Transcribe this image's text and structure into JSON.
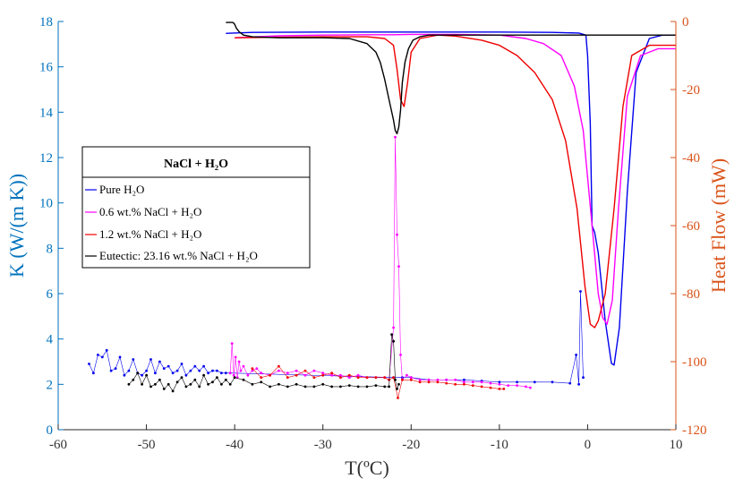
{
  "chart_data": {
    "type": "line",
    "title": "",
    "xlabel": "T(ºC)",
    "ylabel_left": "K (W/(m K))",
    "ylabel_right": "Heat Flow (mW)",
    "xlim": [
      -60,
      10
    ],
    "ylim_left": [
      0,
      18
    ],
    "ylim_right": [
      -120,
      0
    ],
    "x_ticks": [
      "-60",
      "-50",
      "-40",
      "-30",
      "-20",
      "-10",
      "0",
      "10"
    ],
    "y_left_ticks": [
      "0",
      "2",
      "4",
      "6",
      "8",
      "10",
      "12",
      "14",
      "16",
      "18"
    ],
    "y_right_ticks": [
      "-120",
      "-100",
      "-80",
      "-60",
      "-40",
      "-20",
      "0"
    ],
    "grid": false,
    "colors": {
      "left_axis": "#0072bd",
      "right_axis": "#d95319",
      "pure": "#0000ee",
      "nacl06": "#ff00ff",
      "nacl12": "#ee0000",
      "eutectic": "#000000"
    },
    "legend": {
      "title": "NaCl + H₂O",
      "position": "center-left",
      "entries": [
        "Pure H₂O",
        "0.6 wt.% NaCl + H₂O",
        "1.2 wt.% NaCl + H₂O",
        "Eutectic: 23.16 wt.% NaCl + H₂O"
      ]
    },
    "series": [
      {
        "name": "Pure H₂O",
        "axis": "right",
        "key": "pure",
        "x": [
          -41,
          -38,
          -30,
          -20,
          -10,
          -4,
          -1,
          -0.2,
          0,
          0.3,
          0.5,
          0.8,
          1.2,
          2,
          2.7,
          3,
          3.6,
          4.5,
          5.5,
          7,
          8.5,
          10
        ],
        "y": [
          -3.5,
          -3.2,
          -3.1,
          -3.1,
          -3.1,
          -3.2,
          -3.4,
          -4,
          -10,
          -30,
          -60,
          -62,
          -68,
          -88,
          -100.5,
          -101,
          -90,
          -50,
          -15,
          -5,
          -4,
          -4
        ]
      },
      {
        "name": "0.6 wt.% NaCl + H₂O",
        "axis": "right",
        "key": "nacl06",
        "x": [
          -40,
          -35,
          -30,
          -25,
          -22,
          -20,
          -15,
          -10,
          -7,
          -5,
          -3,
          -1.5,
          -0.5,
          0.5,
          1.2,
          1.7,
          2.2,
          2.8,
          3.5,
          4.5,
          6,
          8,
          10
        ],
        "y": [
          -4.8,
          -4.2,
          -4,
          -3.9,
          -3.9,
          -3.8,
          -3.8,
          -4,
          -5,
          -6.5,
          -10,
          -19,
          -32,
          -60,
          -80,
          -87,
          -89,
          -82,
          -55,
          -22,
          -10,
          -8,
          -8
        ]
      },
      {
        "name": "1.2 wt.% NaCl + H₂O",
        "axis": "right",
        "key": "nacl12",
        "x": [
          -40,
          -30,
          -25,
          -23,
          -22,
          -21.6,
          -21.2,
          -20.8,
          -20.4,
          -20,
          -19,
          -17,
          -15,
          -12,
          -10,
          -8,
          -6,
          -4,
          -2.5,
          -1.2,
          -0.3,
          0.3,
          0.8,
          1.2,
          2,
          3,
          4,
          5,
          7,
          10
        ],
        "y": [
          -4.8,
          -4.5,
          -4.5,
          -5,
          -7,
          -14,
          -23,
          -25,
          -18,
          -9,
          -5,
          -4,
          -4.3,
          -5.5,
          -7,
          -10,
          -15,
          -23,
          -35,
          -55,
          -78,
          -89,
          -90,
          -88,
          -80,
          -55,
          -25,
          -10,
          -7,
          -7
        ]
      },
      {
        "name": "Eutectic: 23.16 wt.% NaCl + H₂O",
        "axis": "right",
        "key": "eutectic",
        "x": [
          -41,
          -40.2,
          -40,
          -39.8,
          -39.5,
          -39,
          -38,
          -35,
          -30,
          -27,
          -25,
          -24,
          -23.5,
          -23,
          -22.5,
          -22,
          -21.8,
          -21.6,
          -21.4,
          -21.2,
          -21,
          -20.7,
          -20.3,
          -19.8,
          -19,
          -18,
          -16,
          -14,
          -10,
          0,
          10
        ],
        "y": [
          -0.3,
          -0.3,
          -0.8,
          -2,
          -3,
          -4,
          -4.5,
          -4.8,
          -4.8,
          -5,
          -6.5,
          -9,
          -12,
          -17,
          -23,
          -29,
          -32,
          -33,
          -31,
          -26,
          -18,
          -12,
          -8,
          -5.5,
          -4.5,
          -4,
          -4,
          -4,
          -4,
          -4,
          -4
        ]
      }
    ],
    "scatter_series": [
      {
        "name": "Pure H₂O",
        "axis": "left",
        "key": "pure",
        "x": [
          -56.5,
          -56,
          -55.5,
          -55,
          -54.5,
          -54,
          -53.5,
          -53,
          -52.5,
          -52,
          -51.5,
          -51,
          -50.5,
          -50,
          -49.5,
          -49,
          -48.5,
          -48,
          -47.5,
          -47,
          -46.5,
          -46,
          -45.5,
          -45,
          -44.5,
          -44,
          -43.5,
          -43,
          -42.5,
          -42,
          -41.5,
          -41,
          -40.5,
          -22,
          -21,
          -20,
          -18,
          -16,
          -14,
          -12,
          -10,
          -8,
          -6,
          -4,
          -2,
          -1.3,
          -1,
          -0.8,
          -0.5
        ],
        "y": [
          2.9,
          2.5,
          3.3,
          3.2,
          3.5,
          2.6,
          2.7,
          3.2,
          2.4,
          2.6,
          3.1,
          2.5,
          2.4,
          2.6,
          3.1,
          2.5,
          3,
          2.7,
          2.8,
          2.5,
          2.6,
          2.9,
          2.4,
          2.6,
          2.8,
          2.6,
          2.8,
          2.5,
          2.6,
          2.6,
          2.5,
          2.5,
          2.5,
          2.3,
          2.3,
          2.3,
          2.2,
          2.2,
          2.2,
          2.15,
          2.1,
          2.1,
          2.1,
          2.1,
          2.05,
          3.3,
          2.0,
          6.1,
          2.3
        ]
      },
      {
        "name": "0.6 wt.% NaCl + H₂O",
        "axis": "left",
        "key": "nacl06",
        "x": [
          -40.5,
          -40.3,
          -40.1,
          -39.9,
          -39.7,
          -39.5,
          -39.3,
          -39,
          -38.5,
          -38,
          -37.5,
          -37,
          -36,
          -35,
          -34,
          -33,
          -32,
          -31,
          -30,
          -29,
          -28,
          -27,
          -26,
          -25,
          -24,
          -23,
          -22.5,
          -22,
          -21.8,
          -21.6,
          -21.4,
          -21.2,
          -21,
          -20.5,
          -20,
          -19,
          -18,
          -17,
          -16,
          -15,
          -14,
          -13,
          -12,
          -11,
          -10,
          -9,
          -8,
          -7,
          -6.5
        ],
        "y": [
          2.5,
          3.8,
          2.4,
          3.2,
          2.3,
          3.0,
          2.6,
          2.8,
          2.4,
          2.6,
          2.7,
          2.5,
          2.4,
          2.6,
          2.5,
          2.6,
          2.4,
          2.6,
          2.5,
          2.4,
          2.4,
          2.3,
          2.4,
          2.3,
          2.3,
          2.3,
          2.2,
          4.5,
          12.9,
          8.6,
          7.2,
          3.3,
          2.2,
          2.4,
          2.3,
          2.2,
          2.2,
          2.2,
          2.2,
          2.2,
          2.1,
          2.1,
          2.1,
          2.05,
          2.0,
          1.95,
          1.95,
          1.9,
          1.85
        ]
      },
      {
        "name": "1.2 wt.% NaCl + H₂O",
        "axis": "left",
        "key": "nacl12",
        "x": [
          -38,
          -37,
          -36,
          -35,
          -34,
          -33,
          -32,
          -31,
          -30,
          -29,
          -28,
          -27,
          -26,
          -25,
          -24,
          -23,
          -22.5,
          -22,
          -21.5,
          -21,
          -20,
          -19,
          -18,
          -17,
          -16,
          -15,
          -14,
          -13,
          -12,
          -11,
          -10,
          -9.5
        ],
        "y": [
          2.7,
          2.3,
          2.4,
          2.8,
          2.3,
          2.4,
          2.6,
          2.3,
          2.4,
          2.5,
          2.3,
          2.4,
          2.3,
          2.3,
          2.3,
          2.3,
          2.2,
          2.3,
          1.4,
          2.2,
          2.2,
          2.1,
          2.1,
          2.1,
          2.05,
          2.0,
          2.0,
          1.95,
          1.9,
          1.85,
          1.8,
          1.8
        ]
      },
      {
        "name": "Eutectic: 23.16 wt.% NaCl + H₂O",
        "axis": "left",
        "key": "eutectic",
        "x": [
          -52,
          -51.5,
          -51,
          -50.5,
          -50,
          -49.5,
          -49,
          -48.5,
          -48,
          -47.5,
          -47,
          -46.5,
          -46,
          -45.5,
          -45,
          -44.5,
          -44,
          -43.5,
          -43,
          -42.5,
          -42,
          -41.5,
          -41,
          -40.5,
          -40,
          -39,
          -38,
          -37,
          -36,
          -35,
          -34,
          -33,
          -32,
          -31,
          -30,
          -29,
          -28,
          -27,
          -26,
          -25,
          -24,
          -23,
          -22.5,
          -22.2,
          -22,
          -21.8,
          -21.6,
          -21.4
        ],
        "y": [
          2.0,
          2.2,
          2.5,
          2.0,
          2.4,
          1.9,
          2.0,
          2.2,
          1.8,
          2.0,
          1.7,
          2.1,
          2.3,
          1.9,
          2.0,
          2.2,
          1.9,
          2.4,
          2.0,
          2.1,
          2.3,
          2.0,
          2.2,
          2.0,
          2.3,
          2.2,
          2.0,
          2.1,
          1.9,
          2.0,
          1.9,
          2.0,
          1.9,
          1.9,
          2.0,
          1.9,
          1.9,
          1.95,
          1.9,
          1.9,
          1.95,
          1.9,
          1.9,
          4.2,
          3.9,
          2.2,
          1.8,
          2.0
        ]
      }
    ]
  }
}
